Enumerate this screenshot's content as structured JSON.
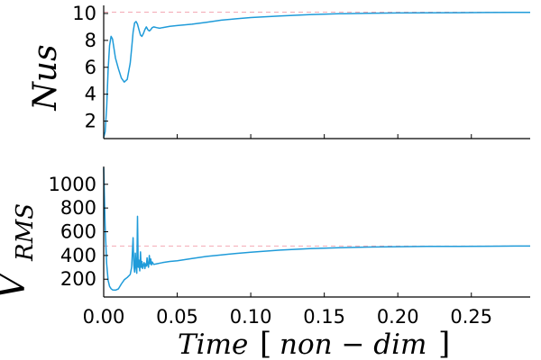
{
  "chart_data": [
    {
      "type": "line",
      "ylabel": "Nus",
      "xlim": [
        0,
        0.29
      ],
      "ylim": [
        0.7,
        10.6
      ],
      "yticks": [
        "2",
        "4",
        "6",
        "8",
        "10"
      ],
      "reference_line": 10.1,
      "series": [
        {
          "color": "#1f9bd9",
          "x": [
            0.0,
            0.001,
            0.002,
            0.003,
            0.004,
            0.005,
            0.006,
            0.007,
            0.008,
            0.01,
            0.012,
            0.014,
            0.016,
            0.018,
            0.019,
            0.02,
            0.021,
            0.022,
            0.023,
            0.024,
            0.025,
            0.026,
            0.027,
            0.028,
            0.029,
            0.03,
            0.031,
            0.032,
            0.033,
            0.034,
            0.036,
            0.038,
            0.04,
            0.045,
            0.05,
            0.06,
            0.07,
            0.08,
            0.09,
            0.1,
            0.12,
            0.14,
            0.16,
            0.18,
            0.2,
            0.22,
            0.24,
            0.26,
            0.28,
            0.29
          ],
          "y": [
            0.8,
            1.2,
            3.0,
            5.8,
            7.6,
            8.3,
            8.1,
            7.4,
            6.7,
            5.9,
            5.2,
            4.9,
            5.1,
            6.3,
            7.4,
            8.6,
            9.3,
            9.4,
            9.2,
            8.8,
            8.4,
            8.3,
            8.5,
            8.8,
            9.0,
            8.8,
            8.7,
            8.8,
            8.95,
            9.0,
            8.95,
            8.9,
            8.95,
            9.05,
            9.1,
            9.2,
            9.35,
            9.5,
            9.6,
            9.7,
            9.82,
            9.92,
            9.98,
            10.02,
            10.04,
            10.05,
            10.06,
            10.07,
            10.08,
            10.08
          ]
        }
      ]
    },
    {
      "type": "line",
      "ylabel": "V_RMS",
      "ylabel_main": "V",
      "ylabel_sub": "RMS",
      "xlabel": "Time [ non - dim ]",
      "xlabel_prefix": "Time",
      "xlabel_bracket_open": "[",
      "xlabel_mid": "non − dim",
      "xlabel_bracket_close": "]",
      "xlim": [
        0,
        0.29
      ],
      "ylim": [
        50,
        1150
      ],
      "xticks": [
        "0.00",
        "0.05",
        "0.10",
        "0.15",
        "0.20",
        "0.25"
      ],
      "yticks": [
        "200",
        "400",
        "600",
        "800",
        "1000"
      ],
      "reference_line": 480,
      "series": [
        {
          "color": "#1f9bd9",
          "x": [
            0.0,
            0.0005,
            0.001,
            0.002,
            0.003,
            0.004,
            0.005,
            0.006,
            0.008,
            0.01,
            0.012,
            0.014,
            0.016,
            0.018,
            0.019,
            0.02,
            0.0205,
            0.021,
            0.0215,
            0.022,
            0.0225,
            0.023,
            0.0235,
            0.024,
            0.0245,
            0.025,
            0.0255,
            0.026,
            0.0265,
            0.027,
            0.0275,
            0.028,
            0.0285,
            0.029,
            0.0295,
            0.03,
            0.0305,
            0.031,
            0.0315,
            0.032,
            0.0325,
            0.033,
            0.034,
            0.036,
            0.04,
            0.045,
            0.05,
            0.06,
            0.07,
            0.08,
            0.09,
            0.1,
            0.12,
            0.14,
            0.16,
            0.18,
            0.2,
            0.22,
            0.24,
            0.26,
            0.28,
            0.29
          ],
          "y": [
            1140,
            900,
            650,
            330,
            190,
            140,
            120,
            110,
            108,
            118,
            160,
            195,
            215,
            240,
            300,
            550,
            320,
            260,
            420,
            300,
            250,
            730,
            300,
            360,
            270,
            430,
            300,
            350,
            290,
            320,
            340,
            290,
            330,
            310,
            380,
            320,
            300,
            400,
            330,
            370,
            320,
            345,
            325,
            330,
            340,
            350,
            355,
            375,
            392,
            405,
            417,
            428,
            445,
            458,
            466,
            471,
            474,
            476,
            477,
            478,
            479,
            479
          ]
        }
      ]
    }
  ]
}
